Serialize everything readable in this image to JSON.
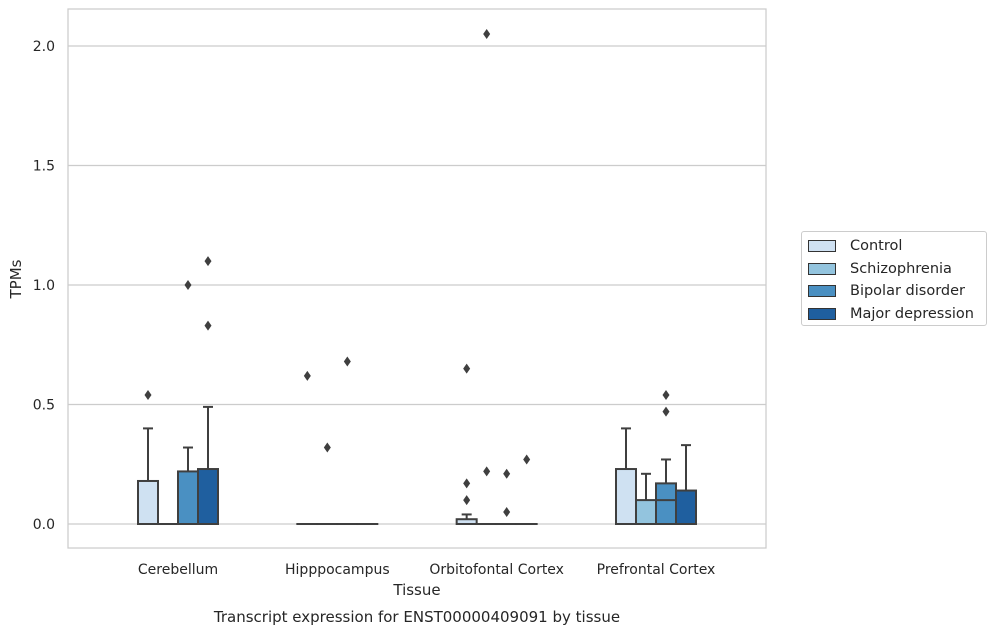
{
  "chart_data": {
    "type": "box",
    "caption": "Transcript expression for ENST00000409091 by tissue",
    "xlabel": "Tissue",
    "ylabel": "TPMs",
    "ylim": [
      -0.1,
      2.15
    ],
    "yticks": [
      "0.0",
      "0.5",
      "1.0",
      "1.5",
      "2.0"
    ],
    "ytick_values": [
      0,
      0.5,
      1.0,
      1.5,
      2.0
    ],
    "grid": "horizontal",
    "legend_position": "right",
    "categories": [
      "Cerebellum",
      "Hipppocampus",
      "Orbitofontal Cortex",
      "Prefrontal Cortex"
    ],
    "series": [
      {
        "name": "Control",
        "color": "#cfe1f2",
        "boxes": [
          {
            "q1": 0.0,
            "median": 0.0,
            "q3": 0.18,
            "whisker_low": 0.0,
            "whisker_high": 0.4,
            "outliers": [
              0.54
            ]
          },
          {
            "q1": 0.0,
            "median": 0.0,
            "q3": 0.0,
            "whisker_low": 0.0,
            "whisker_high": 0.0,
            "outliers": [
              0.62
            ]
          },
          {
            "q1": 0.0,
            "median": 0.0,
            "q3": 0.02,
            "whisker_low": 0.0,
            "whisker_high": 0.04,
            "outliers": [
              0.65,
              0.17,
              0.1
            ]
          },
          {
            "q1": 0.0,
            "median": 0.0,
            "q3": 0.23,
            "whisker_low": 0.0,
            "whisker_high": 0.4,
            "outliers": []
          }
        ]
      },
      {
        "name": "Schizophrenia",
        "color": "#93c4de",
        "boxes": [
          {
            "q1": 0.0,
            "median": 0.0,
            "q3": 0.0,
            "whisker_low": 0.0,
            "whisker_high": 0.0,
            "outliers": []
          },
          {
            "q1": 0.0,
            "median": 0.0,
            "q3": 0.0,
            "whisker_low": 0.0,
            "whisker_high": 0.0,
            "outliers": [
              0.32
            ]
          },
          {
            "q1": 0.0,
            "median": 0.0,
            "q3": 0.0,
            "whisker_low": 0.0,
            "whisker_high": 0.0,
            "outliers": [
              2.05,
              0.22
            ]
          },
          {
            "q1": 0.0,
            "median": 0.0,
            "q3": 0.1,
            "whisker_low": 0.0,
            "whisker_high": 0.21,
            "outliers": []
          }
        ]
      },
      {
        "name": "Bipolar disorder",
        "color": "#4a90c2",
        "boxes": [
          {
            "q1": 0.0,
            "median": 0.0,
            "q3": 0.22,
            "whisker_low": 0.0,
            "whisker_high": 0.32,
            "outliers": [
              1.0
            ]
          },
          {
            "q1": 0.0,
            "median": 0.0,
            "q3": 0.0,
            "whisker_low": 0.0,
            "whisker_high": 0.0,
            "outliers": [
              0.68
            ]
          },
          {
            "q1": 0.0,
            "median": 0.0,
            "q3": 0.0,
            "whisker_low": 0.0,
            "whisker_high": 0.0,
            "outliers": [
              0.21,
              0.05
            ]
          },
          {
            "q1": 0.0,
            "median": 0.1,
            "q3": 0.17,
            "whisker_low": 0.0,
            "whisker_high": 0.27,
            "outliers": [
              0.54,
              0.47
            ]
          }
        ]
      },
      {
        "name": "Major depression",
        "color": "#1f5f9f",
        "boxes": [
          {
            "q1": 0.0,
            "median": 0.0,
            "q3": 0.23,
            "whisker_low": 0.0,
            "whisker_high": 0.49,
            "outliers": [
              1.1,
              0.83
            ]
          },
          {
            "q1": 0.0,
            "median": 0.0,
            "q3": 0.0,
            "whisker_low": 0.0,
            "whisker_high": 0.0,
            "outliers": []
          },
          {
            "q1": 0.0,
            "median": 0.0,
            "q3": 0.0,
            "whisker_low": 0.0,
            "whisker_high": 0.0,
            "outliers": [
              0.27
            ]
          },
          {
            "q1": 0.0,
            "median": 0.0,
            "q3": 0.14,
            "whisker_low": 0.0,
            "whisker_high": 0.33,
            "outliers": []
          }
        ]
      }
    ]
  }
}
